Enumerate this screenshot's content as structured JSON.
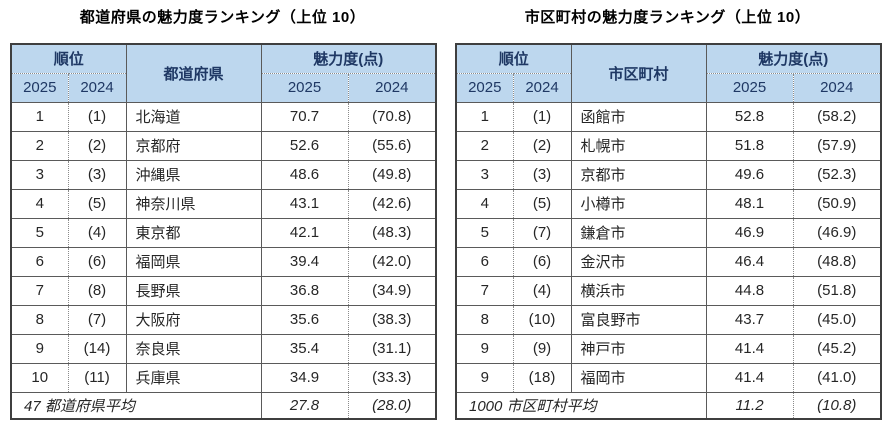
{
  "chart_data": [
    {
      "type": "table",
      "title": "都道府県の魅力度ランキング（上位 10）",
      "header": {
        "rank_group": "順位",
        "name": "都道府県",
        "score_group": "魅力度(点)",
        "year_new": "2025",
        "year_old": "2024"
      },
      "rows": [
        {
          "rank": "1",
          "prev_rank": "(1)",
          "name": "北海道",
          "score": "70.7",
          "prev_score": "(70.8)"
        },
        {
          "rank": "2",
          "prev_rank": "(2)",
          "name": "京都府",
          "score": "52.6",
          "prev_score": "(55.6)"
        },
        {
          "rank": "3",
          "prev_rank": "(3)",
          "name": "沖縄県",
          "score": "48.6",
          "prev_score": "(49.8)"
        },
        {
          "rank": "4",
          "prev_rank": "(5)",
          "name": "神奈川県",
          "score": "43.1",
          "prev_score": "(42.6)"
        },
        {
          "rank": "5",
          "prev_rank": "(4)",
          "name": "東京都",
          "score": "42.1",
          "prev_score": "(48.3)"
        },
        {
          "rank": "6",
          "prev_rank": "(6)",
          "name": "福岡県",
          "score": "39.4",
          "prev_score": "(42.0)"
        },
        {
          "rank": "7",
          "prev_rank": "(8)",
          "name": "長野県",
          "score": "36.8",
          "prev_score": "(34.9)"
        },
        {
          "rank": "8",
          "prev_rank": "(7)",
          "name": "大阪府",
          "score": "35.6",
          "prev_score": "(38.3)"
        },
        {
          "rank": "9",
          "prev_rank": "(14)",
          "name": "奈良県",
          "score": "35.4",
          "prev_score": "(31.1)"
        },
        {
          "rank": "10",
          "prev_rank": "(11)",
          "name": "兵庫県",
          "score": "34.9",
          "prev_score": "(33.3)"
        }
      ],
      "footer": {
        "label": "47 都道府県平均",
        "score": "27.8",
        "prev_score": "(28.0)"
      }
    },
    {
      "type": "table",
      "title": "市区町村の魅力度ランキング（上位 10）",
      "header": {
        "rank_group": "順位",
        "name": "市区町村",
        "score_group": "魅力度(点)",
        "year_new": "2025",
        "year_old": "2024"
      },
      "rows": [
        {
          "rank": "1",
          "prev_rank": "(1)",
          "name": "函館市",
          "score": "52.8",
          "prev_score": "(58.2)"
        },
        {
          "rank": "2",
          "prev_rank": "(2)",
          "name": "札幌市",
          "score": "51.8",
          "prev_score": "(57.9)"
        },
        {
          "rank": "3",
          "prev_rank": "(3)",
          "name": "京都市",
          "score": "49.6",
          "prev_score": "(52.3)"
        },
        {
          "rank": "4",
          "prev_rank": "(5)",
          "name": "小樽市",
          "score": "48.1",
          "prev_score": "(50.9)"
        },
        {
          "rank": "5",
          "prev_rank": "(7)",
          "name": "鎌倉市",
          "score": "46.9",
          "prev_score": "(46.9)"
        },
        {
          "rank": "6",
          "prev_rank": "(6)",
          "name": "金沢市",
          "score": "46.4",
          "prev_score": "(48.8)"
        },
        {
          "rank": "7",
          "prev_rank": "(4)",
          "name": "横浜市",
          "score": "44.8",
          "prev_score": "(51.8)"
        },
        {
          "rank": "8",
          "prev_rank": "(10)",
          "name": "富良野市",
          "score": "43.7",
          "prev_score": "(45.0)"
        },
        {
          "rank": "9",
          "prev_rank": "(9)",
          "name": "神戸市",
          "score": "41.4",
          "prev_score": "(45.2)"
        },
        {
          "rank": "9",
          "prev_rank": "(18)",
          "name": "福岡市",
          "score": "41.4",
          "prev_score": "(41.0)"
        }
      ],
      "footer": {
        "label": "1000 市区町村平均",
        "score": "11.2",
        "prev_score": "(10.8)"
      }
    }
  ],
  "colors": {
    "header_bg": "#bdd7ee",
    "header_text": "#1f3864",
    "border": "#5a5a5a",
    "text": "#262626"
  }
}
